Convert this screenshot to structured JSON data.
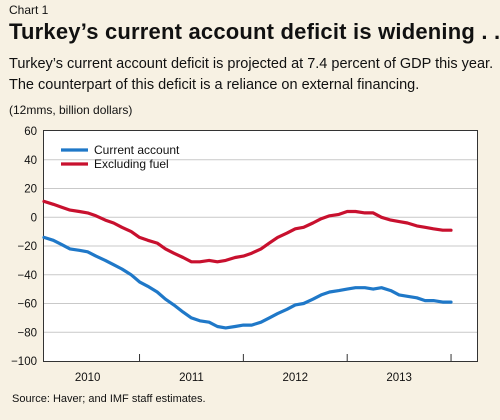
{
  "header": {
    "chart_label": "Chart 1",
    "title": "Turkey’s current account deficit is widening . . .",
    "subtitle": "Turkey’s current account deficit is projected at 7.4 percent of GDP this year. The counterpart of this deficit is a reliance on external financing.",
    "units": "(12mms, billion dollars)"
  },
  "source": "Source: Haver; and IMF staff estimates.",
  "colors": {
    "current_account": "#1f78c8",
    "excluding_fuel": "#c8102e",
    "background": "#f7f1e3"
  },
  "chart_data": {
    "type": "line",
    "ylim": [
      -100,
      60
    ],
    "yticks": [
      60,
      40,
      20,
      0,
      -20,
      -40,
      -60,
      -80,
      -100
    ],
    "ytick_labels": [
      "60",
      "40",
      "20",
      "0",
      "−20",
      "−40",
      "−60",
      "−80",
      "−100"
    ],
    "xlim": [
      2009.58,
      2013.75
    ],
    "xtick_labels": [
      "2010",
      "2011",
      "2012",
      "2013"
    ],
    "xtick_centers": [
      2010.0,
      2011.0,
      2012.0,
      2013.0
    ],
    "year_separators": [
      2010.5,
      2011.5,
      2012.5,
      2013.5
    ],
    "legend_position": "upper-left",
    "grid": "horizontal",
    "series": [
      {
        "name": "Current account",
        "color": "#1f78c8",
        "points": [
          [
            2009.58,
            -14
          ],
          [
            2009.67,
            -16
          ],
          [
            2009.75,
            -19
          ],
          [
            2009.83,
            -22
          ],
          [
            2009.92,
            -23
          ],
          [
            2010.0,
            -24
          ],
          [
            2010.08,
            -27
          ],
          [
            2010.17,
            -30
          ],
          [
            2010.25,
            -33
          ],
          [
            2010.33,
            -36
          ],
          [
            2010.42,
            -40
          ],
          [
            2010.5,
            -45
          ],
          [
            2010.58,
            -48
          ],
          [
            2010.67,
            -52
          ],
          [
            2010.75,
            -57
          ],
          [
            2010.83,
            -61
          ],
          [
            2010.92,
            -66
          ],
          [
            2011.0,
            -70
          ],
          [
            2011.08,
            -72
          ],
          [
            2011.17,
            -73
          ],
          [
            2011.25,
            -76
          ],
          [
            2011.33,
            -77
          ],
          [
            2011.42,
            -76
          ],
          [
            2011.5,
            -75
          ],
          [
            2011.58,
            -75
          ],
          [
            2011.67,
            -73
          ],
          [
            2011.75,
            -70
          ],
          [
            2011.83,
            -67
          ],
          [
            2011.92,
            -64
          ],
          [
            2012.0,
            -61
          ],
          [
            2012.08,
            -60
          ],
          [
            2012.17,
            -57
          ],
          [
            2012.25,
            -54
          ],
          [
            2012.33,
            -52
          ],
          [
            2012.42,
            -51
          ],
          [
            2012.5,
            -50
          ],
          [
            2012.58,
            -49
          ],
          [
            2012.67,
            -49
          ],
          [
            2012.75,
            -50
          ],
          [
            2012.83,
            -49
          ],
          [
            2012.92,
            -51
          ],
          [
            2013.0,
            -54
          ],
          [
            2013.08,
            -55
          ],
          [
            2013.17,
            -56
          ],
          [
            2013.25,
            -58
          ],
          [
            2013.33,
            -58
          ],
          [
            2013.42,
            -59
          ],
          [
            2013.5,
            -59
          ]
        ]
      },
      {
        "name": "Excluding fuel",
        "color": "#c8102e",
        "points": [
          [
            2009.58,
            11
          ],
          [
            2009.67,
            9
          ],
          [
            2009.75,
            7
          ],
          [
            2009.83,
            5
          ],
          [
            2009.92,
            4
          ],
          [
            2010.0,
            3
          ],
          [
            2010.08,
            1
          ],
          [
            2010.17,
            -2
          ],
          [
            2010.25,
            -4
          ],
          [
            2010.33,
            -7
          ],
          [
            2010.42,
            -10
          ],
          [
            2010.5,
            -14
          ],
          [
            2010.58,
            -16
          ],
          [
            2010.67,
            -18
          ],
          [
            2010.75,
            -22
          ],
          [
            2010.83,
            -25
          ],
          [
            2010.92,
            -28
          ],
          [
            2011.0,
            -31
          ],
          [
            2011.08,
            -31
          ],
          [
            2011.17,
            -30
          ],
          [
            2011.25,
            -31
          ],
          [
            2011.33,
            -30
          ],
          [
            2011.42,
            -28
          ],
          [
            2011.5,
            -27
          ],
          [
            2011.58,
            -25
          ],
          [
            2011.67,
            -22
          ],
          [
            2011.75,
            -18
          ],
          [
            2011.83,
            -14
          ],
          [
            2011.92,
            -11
          ],
          [
            2012.0,
            -8
          ],
          [
            2012.08,
            -7
          ],
          [
            2012.17,
            -4
          ],
          [
            2012.25,
            -1
          ],
          [
            2012.33,
            1
          ],
          [
            2012.42,
            2
          ],
          [
            2012.5,
            4
          ],
          [
            2012.58,
            4
          ],
          [
            2012.67,
            3
          ],
          [
            2012.75,
            3
          ],
          [
            2012.83,
            0
          ],
          [
            2012.92,
            -2
          ],
          [
            2013.0,
            -3
          ],
          [
            2013.08,
            -4
          ],
          [
            2013.17,
            -6
          ],
          [
            2013.25,
            -7
          ],
          [
            2013.33,
            -8
          ],
          [
            2013.42,
            -9
          ],
          [
            2013.5,
            -9
          ]
        ]
      }
    ]
  }
}
